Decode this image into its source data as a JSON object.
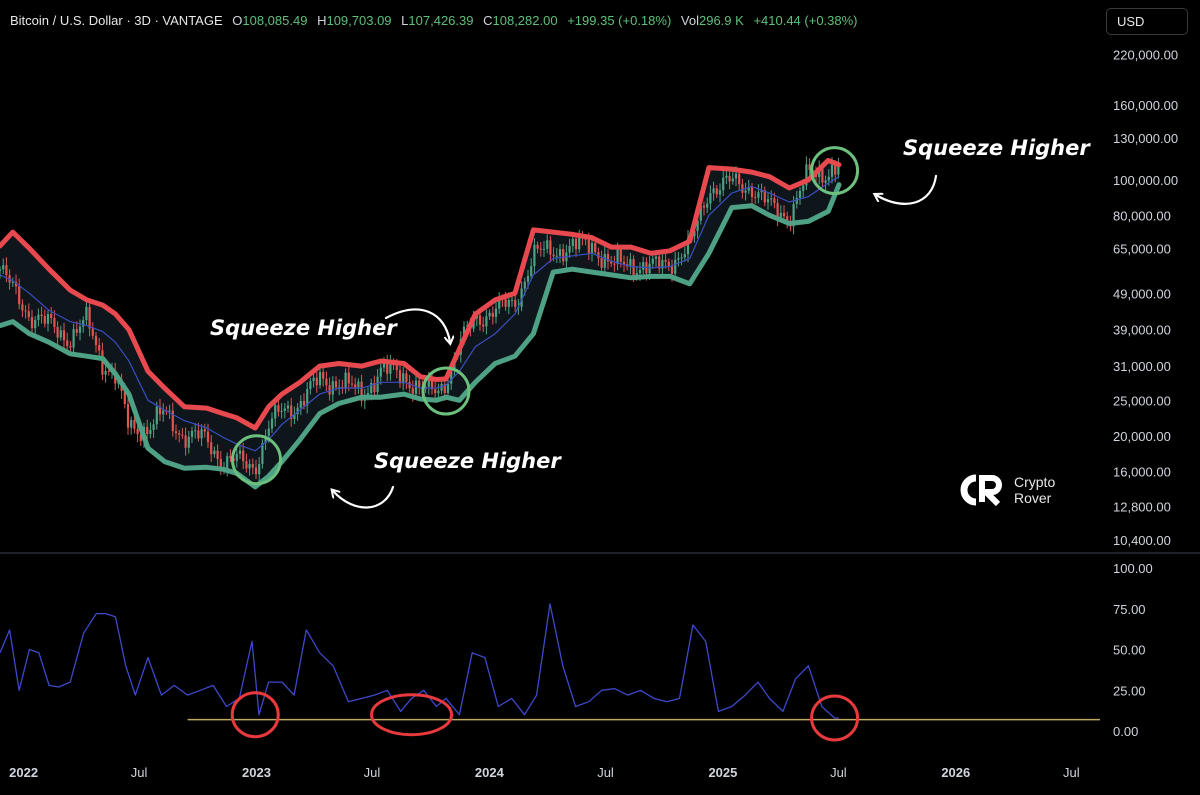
{
  "header": {
    "symbol": "Bitcoin / U.S. Dollar · 3D · VANTAGE",
    "open_label": "O",
    "open": "108,085.49",
    "high_label": "H",
    "high": "109,703.09",
    "low_label": "L",
    "low": "107,426.39",
    "close_label": "C",
    "close": "108,282.00",
    "change": "+199.35 (+0.18%)",
    "vol_label": "Vol",
    "vol": "296.9 K",
    "vol_change": "+410.44 (+0.38%)"
  },
  "currency_button": "USD",
  "brand": {
    "line1": "Crypto",
    "line2": "Rover"
  },
  "annotations": [
    "Squeeze Higher",
    "Squeeze Higher",
    "Squeeze Higher"
  ],
  "colors": {
    "upper_band": "#e8494e",
    "lower_band": "#4ea184",
    "basis": "#3b4ec0",
    "indicator": "#3d49c8",
    "threshold": "#bfa964",
    "highlight_circle": "#6cbf7d",
    "indicator_circle": "#e8393c",
    "candle_up": "#4ea184",
    "candle_down": "#e05550"
  },
  "chart_data": [
    {
      "type": "line",
      "title": "Bitcoin / U.S. Dollar · 3D",
      "y_scale": "log",
      "ylim": [
        10000,
        235000
      ],
      "yticks": [
        220000,
        160000,
        130000,
        100000,
        80000,
        65000,
        49000,
        39000,
        31000,
        25000,
        20000,
        16000,
        12800,
        10400
      ],
      "ytick_labels": [
        "220,000.00",
        "160,000.00",
        "130,000.00",
        "100,000.00",
        "80,000.00",
        "65,000.00",
        "49,000.00",
        "39,000.00",
        "31,000.00",
        "25,000.00",
        "20,000.00",
        "16,000.00",
        "12,800.00",
        "10,400.00"
      ],
      "x_ticks": [
        "2022-01-01",
        "2022-07-01",
        "2023-01-01",
        "2023-07-01",
        "2024-01-01",
        "2024-07-01",
        "2025-01-01",
        "2025-07-01",
        "2026-01-01",
        "2026-07-01"
      ],
      "x_tick_labels": [
        "2022",
        "Jul",
        "2023",
        "Jul",
        "2024",
        "Jul",
        "2025",
        "Jul",
        "2026",
        "Jul"
      ],
      "x_range": [
        "2021-11-25",
        "2026-08-15"
      ],
      "x": [
        "2021-11-25",
        "2021-12-15",
        "2022-01-10",
        "2022-02-10",
        "2022-03-15",
        "2022-04-10",
        "2022-05-05",
        "2022-05-25",
        "2022-06-15",
        "2022-07-15",
        "2022-08-10",
        "2022-09-10",
        "2022-10-15",
        "2022-11-10",
        "2022-12-01",
        "2022-12-30",
        "2023-01-20",
        "2023-02-10",
        "2023-03-10",
        "2023-04-10",
        "2023-05-10",
        "2023-06-15",
        "2023-07-15",
        "2023-08-20",
        "2023-09-15",
        "2023-10-10",
        "2023-10-25",
        "2023-11-15",
        "2023-12-10",
        "2024-01-10",
        "2024-02-10",
        "2024-03-10",
        "2024-04-10",
        "2024-05-10",
        "2024-06-10",
        "2024-07-10",
        "2024-08-10",
        "2024-09-10",
        "2024-10-10",
        "2024-11-10",
        "2024-12-10",
        "2025-01-15",
        "2025-02-15",
        "2025-03-15",
        "2025-04-15",
        "2025-05-15",
        "2025-06-15",
        "2025-07-02"
      ],
      "series": [
        {
          "name": "Bollinger Upper",
          "values": [
            66000,
            72000,
            65000,
            57000,
            50000,
            47000,
            45500,
            43000,
            39000,
            30000,
            27000,
            24000,
            23800,
            23000,
            22400,
            21000,
            24000,
            26000,
            28000,
            31000,
            31500,
            31000,
            32000,
            31500,
            29000,
            28500,
            28600,
            34500,
            43000,
            47000,
            49000,
            73000,
            72000,
            71000,
            69500,
            65500,
            65500,
            63000,
            64000,
            68000,
            108000,
            107000,
            105000,
            102000,
            95000,
            100000,
            113000,
            110000
          ]
        },
        {
          "name": "Price",
          "values": [
            57000,
            50000,
            43000,
            40000,
            37000,
            41000,
            32000,
            29000,
            21000,
            21000,
            23000,
            20000,
            19500,
            17000,
            17000,
            16600,
            21000,
            23500,
            24500,
            28500,
            28000,
            26000,
            30000,
            29500,
            26500,
            26500,
            28500,
            35000,
            42000,
            44000,
            46000,
            62000,
            64500,
            65000,
            67000,
            58000,
            59500,
            57000,
            60000,
            65000,
            95000,
            98000,
            96000,
            84000,
            80000,
            103000,
            106000,
            108282
          ]
        },
        {
          "name": "Bollinger Basis",
          "values": [
            55000,
            53000,
            49000,
            44000,
            41000,
            40000,
            38500,
            36000,
            32000,
            25000,
            23500,
            22000,
            21000,
            19800,
            19000,
            18200,
            19500,
            21500,
            23500,
            26000,
            27000,
            27000,
            28000,
            28000,
            27000,
            27000,
            27500,
            30000,
            35000,
            38000,
            43000,
            55000,
            61000,
            62000,
            63000,
            60000,
            58000,
            57500,
            58000,
            61000,
            80000,
            92000,
            96000,
            92000,
            87000,
            90000,
            98000,
            102000
          ]
        },
        {
          "name": "Bollinger Lower",
          "values": [
            40000,
            41000,
            38000,
            36000,
            33500,
            33000,
            32500,
            29500,
            26000,
            18500,
            17000,
            16300,
            16400,
            16200,
            15800,
            14500,
            15500,
            17000,
            19500,
            23000,
            24500,
            25500,
            25500,
            26000,
            25200,
            25000,
            25500,
            25000,
            28000,
            31500,
            33000,
            38000,
            56000,
            57000,
            56000,
            55000,
            54000,
            54500,
            54500,
            52000,
            63000,
            84000,
            85000,
            80000,
            76000,
            77000,
            82000,
            97000
          ]
        }
      ],
      "annotations": [
        "Squeeze Higher",
        "Squeeze Higher",
        "Squeeze Higher"
      ]
    },
    {
      "type": "line",
      "ylim": [
        0,
        100
      ],
      "yticks": [
        100,
        75,
        50,
        25,
        0
      ],
      "ytick_labels": [
        "100.00",
        "75.00",
        "50.00",
        "25.00",
        "0.00"
      ],
      "threshold": 7,
      "x": [
        "2021-11-25",
        "2021-12-10",
        "2021-12-25",
        "2022-01-10",
        "2022-01-25",
        "2022-02-10",
        "2022-02-25",
        "2022-03-15",
        "2022-04-05",
        "2022-04-25",
        "2022-05-10",
        "2022-05-25",
        "2022-06-10",
        "2022-06-25",
        "2022-07-15",
        "2022-08-05",
        "2022-08-25",
        "2022-09-15",
        "2022-10-05",
        "2022-10-25",
        "2022-11-15",
        "2022-12-05",
        "2022-12-25",
        "2023-01-05",
        "2023-01-20",
        "2023-02-10",
        "2023-03-01",
        "2023-03-20",
        "2023-04-10",
        "2023-05-01",
        "2023-05-25",
        "2023-06-15",
        "2023-07-05",
        "2023-07-25",
        "2023-08-15",
        "2023-09-01",
        "2023-09-20",
        "2023-10-10",
        "2023-10-25",
        "2023-11-15",
        "2023-12-05",
        "2023-12-25",
        "2024-01-15",
        "2024-02-05",
        "2024-02-25",
        "2024-03-15",
        "2024-04-05",
        "2024-04-25",
        "2024-05-15",
        "2024-06-05",
        "2024-06-25",
        "2024-07-15",
        "2024-08-05",
        "2024-08-25",
        "2024-09-15",
        "2024-10-05",
        "2024-10-25",
        "2024-11-15",
        "2024-12-05",
        "2024-12-25",
        "2025-01-15",
        "2025-02-05",
        "2025-02-25",
        "2025-03-15",
        "2025-04-05",
        "2025-04-25",
        "2025-05-15",
        "2025-06-05",
        "2025-06-25",
        "2025-07-02"
      ],
      "series": [
        {
          "name": "Indicator",
          "values": [
            48,
            62,
            25,
            50,
            48,
            28,
            27,
            30,
            60,
            72,
            72,
            70,
            40,
            22,
            45,
            22,
            28,
            22,
            25,
            28,
            15,
            20,
            55,
            10,
            30,
            30,
            22,
            62,
            48,
            40,
            18,
            20,
            22,
            25,
            12,
            20,
            25,
            15,
            20,
            10,
            48,
            45,
            15,
            20,
            10,
            22,
            78,
            40,
            15,
            18,
            25,
            26,
            22,
            25,
            20,
            18,
            20,
            65,
            55,
            12,
            15,
            22,
            30,
            20,
            12,
            32,
            40,
            15,
            8,
            8
          ]
        }
      ]
    }
  ]
}
